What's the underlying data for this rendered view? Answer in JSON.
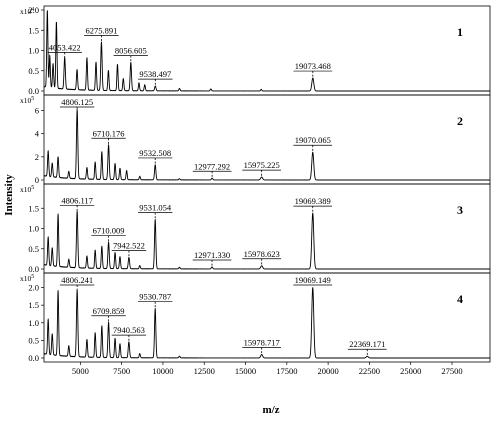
{
  "chart_data": {
    "type": "line",
    "title": "",
    "xlabel": "m/z",
    "ylabel": "Intensity",
    "xlim": [
      2800,
      29800
    ],
    "xticks": [
      5000,
      7500,
      10000,
      12500,
      15000,
      17500,
      20000,
      22500,
      25000,
      27500
    ],
    "xtick_labels": [
      "5000",
      "7500",
      "10000",
      "12500",
      "15000",
      "17500",
      "20000",
      "22500",
      "25000",
      "27500"
    ],
    "panels": [
      {
        "name": "1",
        "multiplier": "x10",
        "multiplier_exp": "4",
        "ylim": [
          0,
          2.0
        ],
        "yticks": [
          0.0,
          0.5,
          1.0,
          1.5,
          2.0
        ],
        "ytick_labels": [
          "0.0",
          "0.5",
          "1.0",
          "1.5",
          "2.0"
        ],
        "labeled_peaks": [
          {
            "mz": 4053.422,
            "label": "4053.422",
            "intensity": 0.78
          },
          {
            "mz": 6275.891,
            "label": "6275.891",
            "intensity": 1.2
          },
          {
            "mz": 8056.605,
            "label": "8056.605",
            "intensity": 0.7
          },
          {
            "mz": 9538.497,
            "label": "9538.497",
            "intensity": 0.12
          },
          {
            "mz": 19073.468,
            "label": "19073.468",
            "intensity": 0.32
          }
        ],
        "other_peaks": [
          {
            "mz": 3000,
            "intensity": 1.9
          },
          {
            "mz": 3150,
            "intensity": 0.8
          },
          {
            "mz": 3350,
            "intensity": 0.6
          },
          {
            "mz": 3550,
            "intensity": 1.65
          },
          {
            "mz": 4800,
            "intensity": 0.5
          },
          {
            "mz": 5400,
            "intensity": 0.8
          },
          {
            "mz": 5950,
            "intensity": 0.7
          },
          {
            "mz": 6700,
            "intensity": 0.5
          },
          {
            "mz": 7250,
            "intensity": 0.65
          },
          {
            "mz": 7600,
            "intensity": 0.3
          },
          {
            "mz": 8550,
            "intensity": 0.2
          },
          {
            "mz": 8900,
            "intensity": 0.15
          },
          {
            "mz": 11000,
            "intensity": 0.06
          },
          {
            "mz": 12900,
            "intensity": 0.05
          },
          {
            "mz": 15950,
            "intensity": 0.04
          }
        ]
      },
      {
        "name": "2",
        "multiplier": "x10",
        "multiplier_exp": "5",
        "ylim": [
          0,
          7
        ],
        "yticks": [
          0,
          2,
          4,
          6
        ],
        "ytick_labels": [
          "0",
          "2",
          "4",
          "6"
        ],
        "labeled_peaks": [
          {
            "mz": 4806.125,
            "label": "4806.125",
            "intensity": 6.0
          },
          {
            "mz": 6710.176,
            "label": "6710.176",
            "intensity": 3.0
          },
          {
            "mz": 9532.508,
            "label": "9532.508",
            "intensity": 1.3
          },
          {
            "mz": 12977.292,
            "label": "12977.292",
            "intensity": 0.15
          },
          {
            "mz": 15975.225,
            "label": "15975.225",
            "intensity": 0.25
          },
          {
            "mz": 19070.065,
            "label": "19070.065",
            "intensity": 2.4
          }
        ],
        "other_peaks": [
          {
            "mz": 3050,
            "intensity": 2.2
          },
          {
            "mz": 3300,
            "intensity": 1.2
          },
          {
            "mz": 3650,
            "intensity": 1.8
          },
          {
            "mz": 4300,
            "intensity": 0.6
          },
          {
            "mz": 5400,
            "intensity": 1.0
          },
          {
            "mz": 5900,
            "intensity": 1.5
          },
          {
            "mz": 6300,
            "intensity": 2.4
          },
          {
            "mz": 7100,
            "intensity": 1.4
          },
          {
            "mz": 7400,
            "intensity": 1.0
          },
          {
            "mz": 7800,
            "intensity": 0.8
          },
          {
            "mz": 8600,
            "intensity": 0.3
          },
          {
            "mz": 11000,
            "intensity": 0.1
          }
        ]
      },
      {
        "name": "3",
        "multiplier": "x10",
        "multiplier_exp": "5",
        "ylim": [
          0,
          2.0
        ],
        "yticks": [
          0.0,
          0.5,
          1.0,
          1.5
        ],
        "ytick_labels": [
          "0.0",
          "0.5",
          "1.0",
          "1.5"
        ],
        "labeled_peaks": [
          {
            "mz": 4806.117,
            "label": "4806.117",
            "intensity": 1.4
          },
          {
            "mz": 6710.009,
            "label": "6710.009",
            "intensity": 0.65
          },
          {
            "mz": 7942.522,
            "label": "7942.522",
            "intensity": 0.28
          },
          {
            "mz": 9531.054,
            "label": "9531.054",
            "intensity": 1.22
          },
          {
            "mz": 12971.33,
            "label": "12971.330",
            "intensity": 0.05
          },
          {
            "mz": 15978.623,
            "label": "15978.623",
            "intensity": 0.08
          },
          {
            "mz": 19069.389,
            "label": "19069.389",
            "intensity": 1.38
          }
        ],
        "other_peaks": [
          {
            "mz": 3050,
            "intensity": 0.7
          },
          {
            "mz": 3300,
            "intensity": 0.45
          },
          {
            "mz": 3650,
            "intensity": 1.3
          },
          {
            "mz": 4300,
            "intensity": 0.2
          },
          {
            "mz": 5400,
            "intensity": 0.3
          },
          {
            "mz": 5900,
            "intensity": 0.45
          },
          {
            "mz": 6300,
            "intensity": 0.55
          },
          {
            "mz": 7100,
            "intensity": 0.4
          },
          {
            "mz": 7400,
            "intensity": 0.3
          },
          {
            "mz": 8600,
            "intensity": 0.08
          },
          {
            "mz": 11000,
            "intensity": 0.04
          }
        ]
      },
      {
        "name": "4",
        "multiplier": "x10",
        "multiplier_exp": "5",
        "ylim": [
          0,
          2.3
        ],
        "yticks": [
          0.0,
          0.5,
          1.0,
          1.5,
          2.0
        ],
        "ytick_labels": [
          "0.0",
          "0.5",
          "1.0",
          "1.5",
          "2.0"
        ],
        "labeled_peaks": [
          {
            "mz": 4806.241,
            "label": "4806.241",
            "intensity": 1.9
          },
          {
            "mz": 6709.859,
            "label": "6709.859",
            "intensity": 1.0
          },
          {
            "mz": 7940.563,
            "label": "7940.563",
            "intensity": 0.45
          },
          {
            "mz": 9530.787,
            "label": "9530.787",
            "intensity": 1.4
          },
          {
            "mz": 15978.717,
            "label": "15978.717",
            "intensity": 0.1
          },
          {
            "mz": 19069.149,
            "label": "19069.149",
            "intensity": 2.0
          },
          {
            "mz": 22369.171,
            "label": "22369.171",
            "intensity": 0.05
          }
        ],
        "other_peaks": [
          {
            "mz": 3050,
            "intensity": 1.0
          },
          {
            "mz": 3300,
            "intensity": 0.6
          },
          {
            "mz": 3650,
            "intensity": 1.85
          },
          {
            "mz": 4300,
            "intensity": 0.3
          },
          {
            "mz": 5400,
            "intensity": 0.5
          },
          {
            "mz": 5900,
            "intensity": 0.7
          },
          {
            "mz": 6300,
            "intensity": 0.9
          },
          {
            "mz": 7100,
            "intensity": 0.55
          },
          {
            "mz": 7400,
            "intensity": 0.4
          },
          {
            "mz": 8600,
            "intensity": 0.12
          },
          {
            "mz": 11000,
            "intensity": 0.05
          }
        ]
      }
    ]
  }
}
